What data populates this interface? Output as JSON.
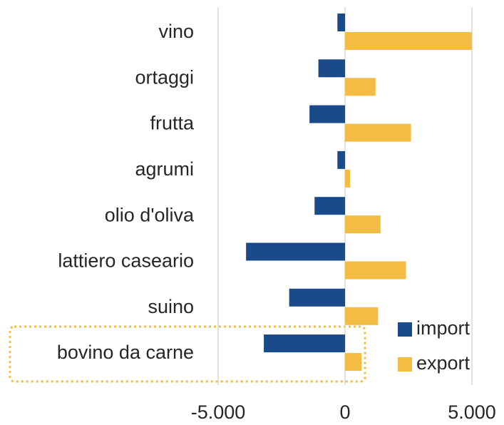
{
  "chart_data": {
    "type": "hbar",
    "categories": [
      "vino",
      "ortaggi",
      "frutta",
      "agrumi",
      "olio d'oliva",
      "lattiero caseario",
      "suino",
      "bovino da carne"
    ],
    "series": [
      {
        "name": "import",
        "color": "#1a4a8a",
        "values": [
          -300,
          -1050,
          -1400,
          -300,
          -1200,
          -3900,
          -2200,
          -3200
        ]
      },
      {
        "name": "export",
        "color": "#f2bc45",
        "values": [
          5000,
          1200,
          2600,
          200,
          1400,
          2400,
          1300,
          650
        ]
      }
    ],
    "xlim": [
      -5000,
      5000
    ],
    "xticks": [
      {
        "value": -5000,
        "label": "-5.000"
      },
      0,
      {
        "value": 5000,
        "label": "5.000"
      }
    ],
    "grid": true,
    "legend": "lower right"
  }
}
